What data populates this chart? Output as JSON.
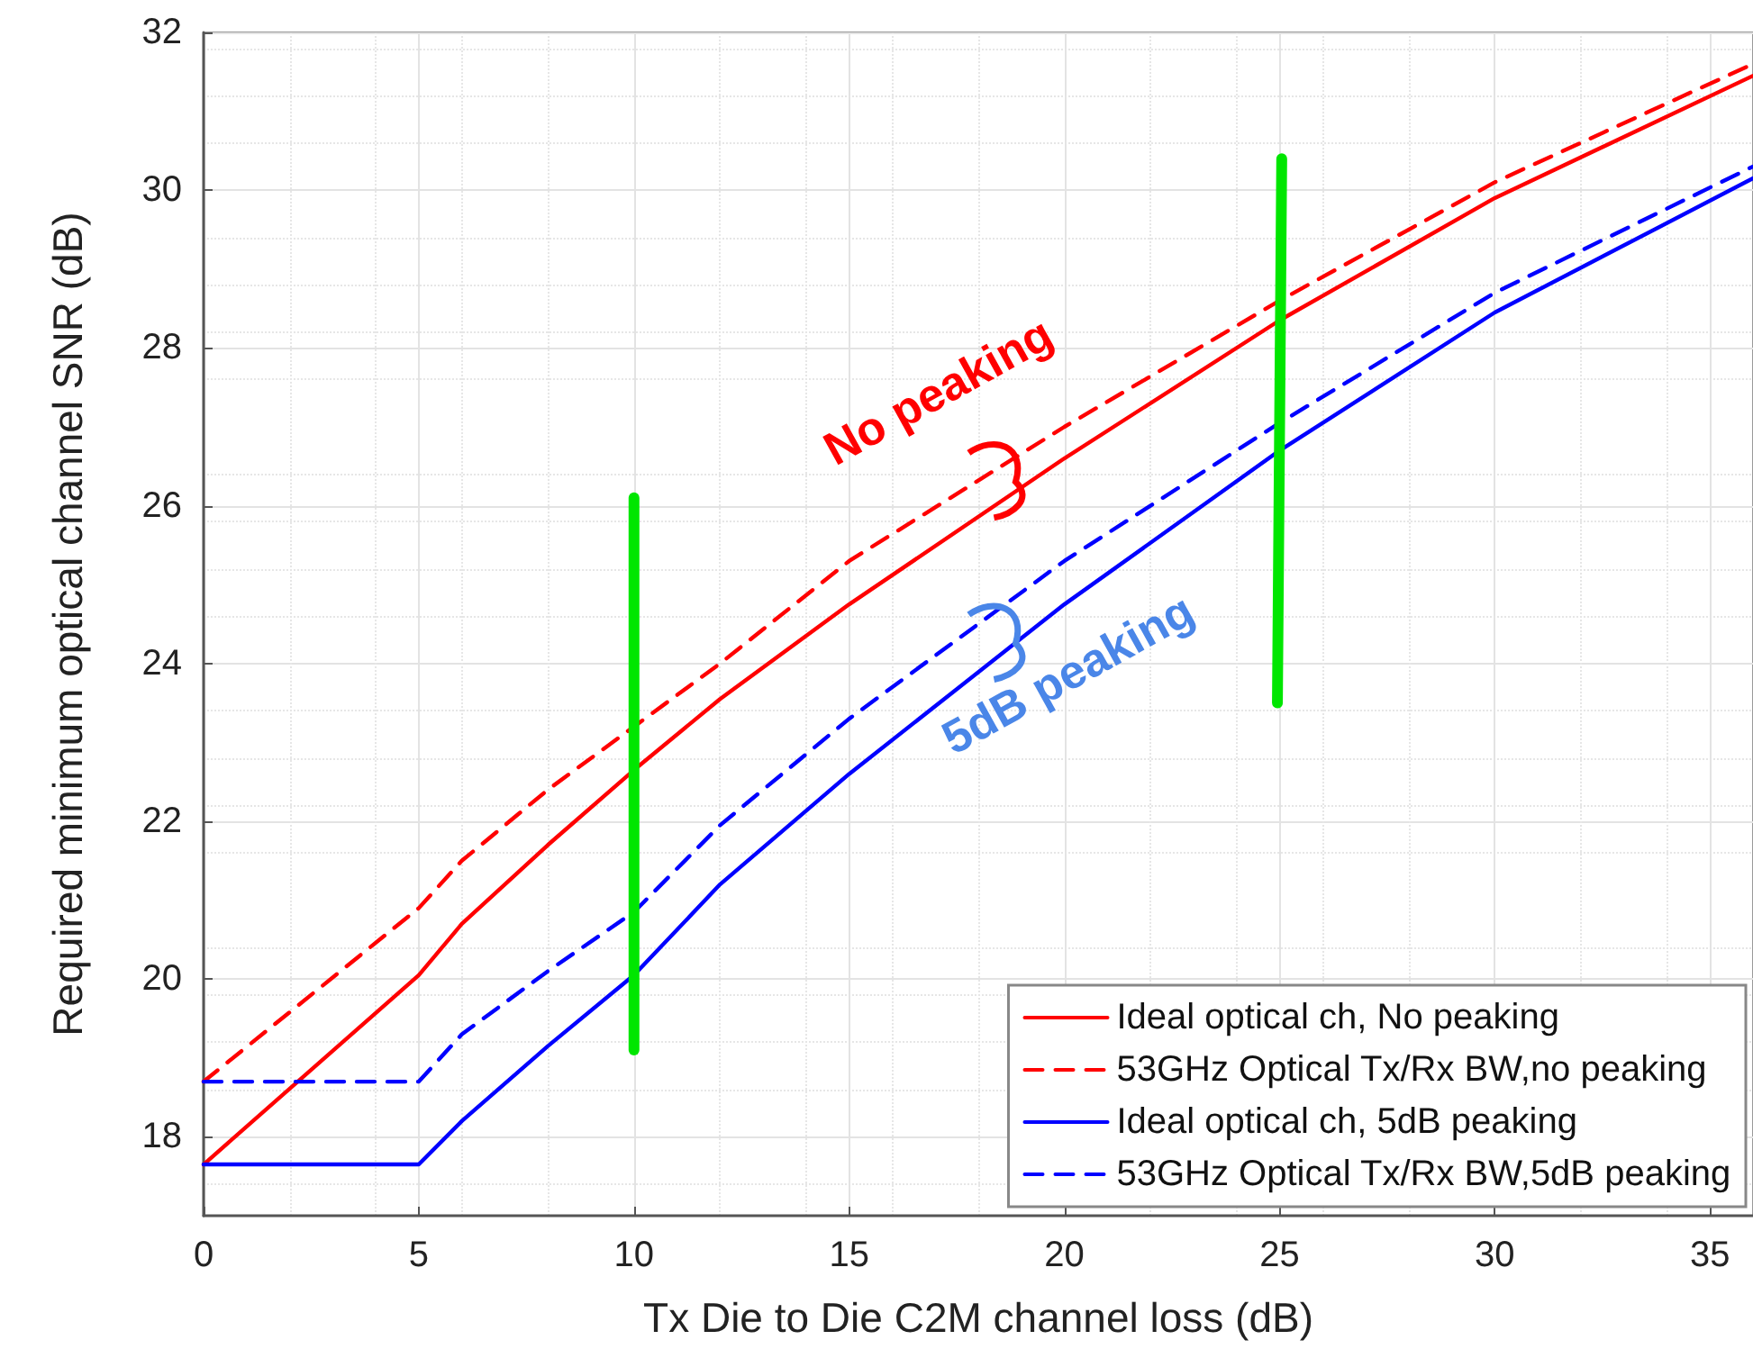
{
  "chart_data": {
    "type": "line",
    "xlabel": "Tx Die to Die C2M channel loss (dB)",
    "ylabel": "Required minimum optical channel SNR (dB)",
    "x": [
      0,
      5,
      6,
      8,
      10,
      12,
      15,
      20,
      25,
      30,
      36
    ],
    "series": [
      {
        "name": "Ideal optical ch, No peaking",
        "color": "#ff0000",
        "line_style": "solid",
        "values": [
          17.65,
          20.05,
          20.7,
          21.7,
          22.65,
          23.55,
          24.75,
          26.6,
          28.35,
          29.9,
          31.45
        ]
      },
      {
        "name": "53GHz Optical Tx/Rx BW,no peaking",
        "color": "#ff0000",
        "line_style": "dashed",
        "values": [
          18.7,
          20.9,
          21.5,
          22.4,
          23.2,
          24.0,
          25.3,
          27.0,
          28.6,
          30.1,
          31.6
        ]
      },
      {
        "name": "Ideal optical ch, 5dB peaking",
        "color": "#0000ff",
        "line_style": "solid",
        "values": [
          17.65,
          17.65,
          18.2,
          19.15,
          20.05,
          21.2,
          22.6,
          24.75,
          26.7,
          28.45,
          30.15
        ]
      },
      {
        "name": "53GHz Optical Tx/Rx BW,5dB peaking",
        "color": "#0000ff",
        "line_style": "dashed",
        "values": [
          18.7,
          18.7,
          19.3,
          20.1,
          20.85,
          21.95,
          23.3,
          25.3,
          27.05,
          28.7,
          30.3
        ]
      },
      {
        "color": "#00e600",
        "line_style": "solid",
        "x": [
          10,
          10
        ],
        "values": [
          19.1,
          26.1
        ]
      },
      {
        "color": "#00e600",
        "line_style": "solid",
        "x": [
          25.05,
          24.95
        ],
        "values": [
          30.4,
          23.5
        ]
      }
    ],
    "annotations": [
      "No peaking",
      "5dB peaking"
    ],
    "xlim": [
      0,
      36
    ],
    "xticks": [
      0,
      5,
      10,
      15,
      20,
      25,
      30,
      35
    ],
    "ylim": [
      17,
      32
    ],
    "yticks": [
      18,
      20,
      22,
      24,
      26,
      28,
      30,
      32
    ],
    "grid": true,
    "legend": "bottom right",
    "marker": "none"
  }
}
